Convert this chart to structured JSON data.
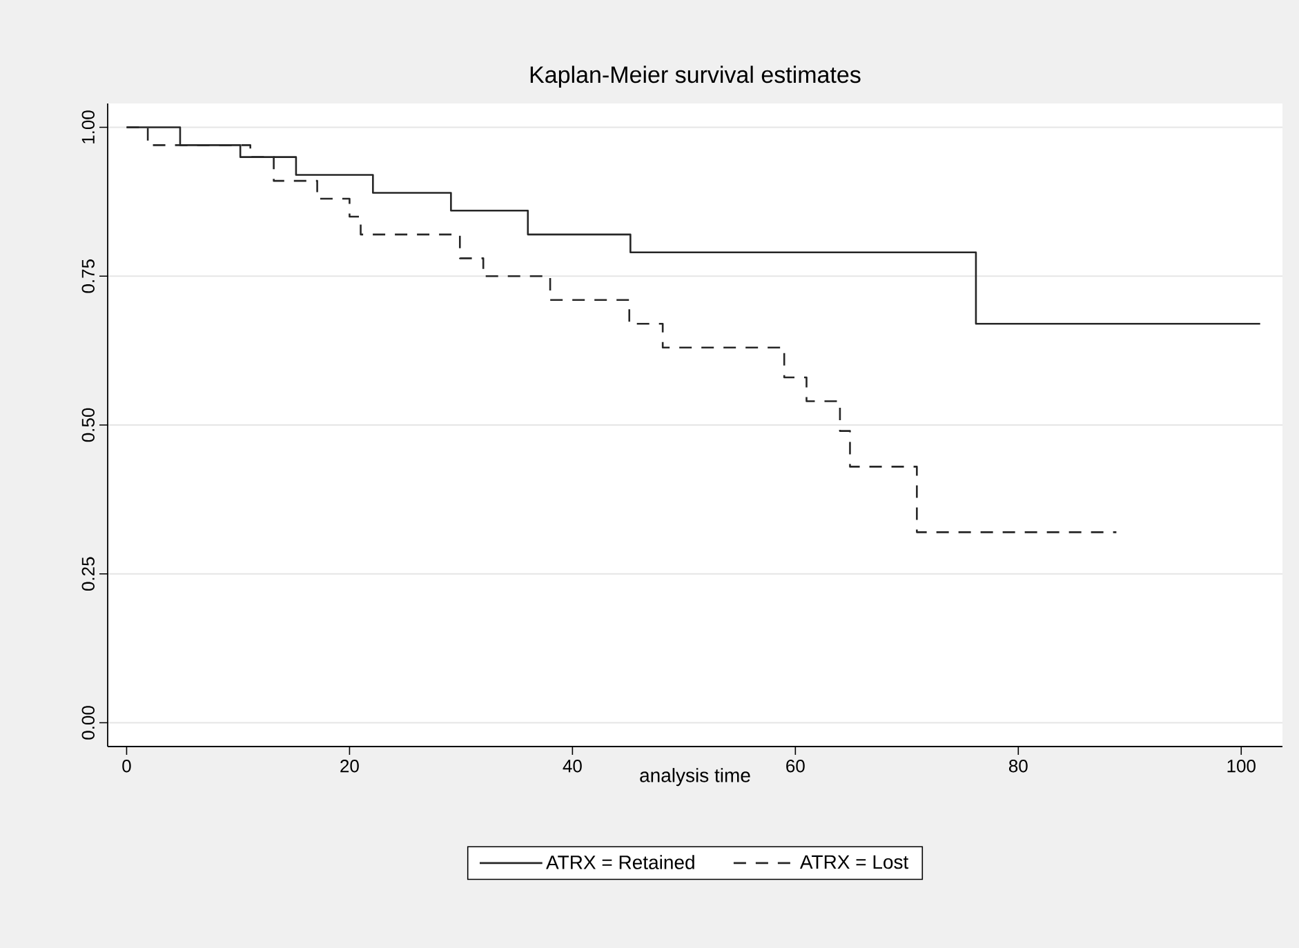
{
  "chart_data": {
    "type": "step",
    "title": "Kaplan-Meier survival estimates",
    "xlabel": "analysis time",
    "xlim": [
      -1.7,
      103.7
    ],
    "ylim": [
      -0.04,
      1.04
    ],
    "xticks": [
      0,
      20,
      40,
      60,
      80,
      100
    ],
    "yticks": [
      {
        "value": 0,
        "label": "0.00"
      },
      {
        "value": 0.25,
        "label": "0.25"
      },
      {
        "value": 0.5,
        "label": "0.50"
      },
      {
        "value": 0.75,
        "label": "0.75"
      },
      {
        "value": 1,
        "label": "1.00"
      }
    ],
    "grid": "y",
    "legend": "bottom",
    "series": [
      {
        "name": "ATRX = Retained",
        "color": "#262626",
        "line_style": "solid",
        "x": [
          0,
          4.8,
          10.2,
          15.2,
          22.1,
          29.1,
          36.0,
          45.2,
          76.2,
          101.7
        ],
        "values": [
          1,
          0.97,
          0.95,
          0.92,
          0.89,
          0.86,
          0.82,
          0.79,
          0.67,
          0.67
        ]
      },
      {
        "name": "ATRX = Lost",
        "color": "#262626",
        "line_style": "dashed",
        "x": [
          0,
          1.9,
          11.1,
          13.2,
          17.1,
          20.0,
          21.0,
          29.9,
          32.0,
          38.0,
          45.1,
          48.1,
          59.0,
          61.0,
          64.0,
          64.9,
          70.9,
          88.8
        ],
        "values": [
          1,
          0.97,
          0.95,
          0.91,
          0.88,
          0.85,
          0.82,
          0.78,
          0.75,
          0.71,
          0.67,
          0.63,
          0.58,
          0.54,
          0.49,
          0.43,
          0.32,
          0.32
        ]
      }
    ]
  }
}
